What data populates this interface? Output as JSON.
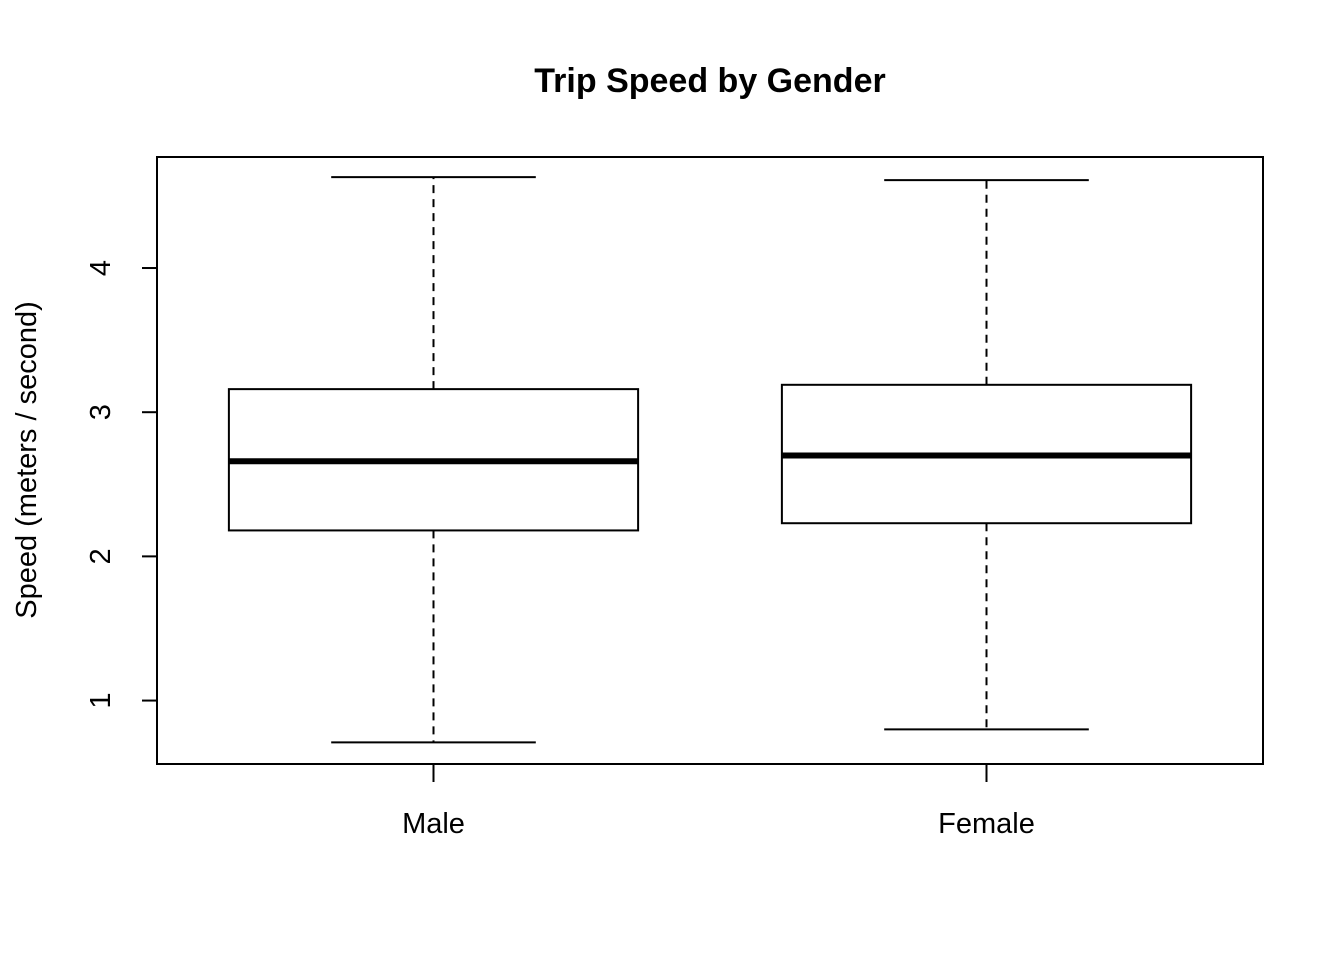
{
  "chart_data": {
    "type": "boxplot",
    "title": "Trip Speed by Gender",
    "xlabel": "",
    "ylabel": "Speed (meters / second)",
    "ylim": [
      0.56,
      4.77
    ],
    "yticks": [
      1,
      2,
      3,
      4
    ],
    "grid": false,
    "categories": [
      "Male",
      "Female"
    ],
    "boxes": [
      {
        "category": "Male",
        "whisker_low": 0.71,
        "q1": 2.18,
        "median": 2.66,
        "q3": 3.16,
        "whisker_high": 4.63
      },
      {
        "category": "Female",
        "whisker_low": 0.8,
        "q1": 2.23,
        "median": 2.7,
        "q3": 3.19,
        "whisker_high": 4.61
      }
    ]
  }
}
